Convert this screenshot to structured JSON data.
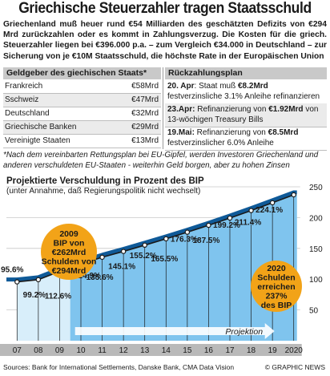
{
  "title": "Griechische Steuerzahler tragen Staatsschuld",
  "intro": "Griechenland muß heuer rund €54 Milliarden des geschätzten Defizits von €294 Mrd zurückzahlen oder es kommt in Zahlungsverzug. Die Kosten für die griech. Steuerzahler liegen bei €396.000 p.a. – zum Vergleich €34.000 in Deutschland – zur Sicherung von je €10M Staatsschuld, die höchste Rate in der Europäischen Union",
  "creditors": {
    "header": "Geldgeber des giechischen Staats*",
    "rows": [
      {
        "name": "Frankreich",
        "amount": "€58Mrd"
      },
      {
        "name": "Sschweiz",
        "amount": "€47Mrd"
      },
      {
        "name": "Deutschland",
        "amount": "€32Mrd"
      },
      {
        "name": "Griechische Banken",
        "amount": "€29Mrd"
      },
      {
        "name": "Vereinigte Staaten",
        "amount": "€13Mrd"
      }
    ]
  },
  "repayment": {
    "header": "Rückzahlungsplan",
    "rows": [
      {
        "date": "20. Apr",
        "text1": ": Staat muß ",
        "amount": "€8.2Mrd",
        "text2": " festverzinsliche 3.1% Anleihe refinanzieren"
      },
      {
        "date": "23.Apr:",
        "text1": " Refinanzierung von ",
        "amount": "€1.92Mrd",
        "text2": " von 13-wöchigen Treasury Bills"
      },
      {
        "date": "19.Mai:",
        "text1": " Refinanzierung von ",
        "amount": "€8.5Mrd",
        "text2": " festverzinslicher 6.0% Anleihe"
      }
    ]
  },
  "footnote": "*Nach dem vereinbarten Rettungsplan bei EU-Gipfel, werden Investoren Griechenland und anderen verschuldeten EU-Staaten - weiterhin Geld borgen, aber zu hohen Zinsen",
  "chart_data": {
    "type": "line",
    "title": "Projektierte Verschuldung in Prozent des BIP",
    "subtitle": "(unter Annahme, daß Regierungspolitik nicht wechselt)",
    "categories": [
      "07",
      "08",
      "09",
      "10",
      "11",
      "12",
      "13",
      "14",
      "15",
      "16",
      "17",
      "18",
      "19",
      "2020"
    ],
    "values": [
      95.6,
      99.2,
      112.6,
      124.9,
      135.6,
      145.1,
      155.2,
      165.5,
      176.3,
      187.5,
      199.2,
      211.4,
      224.1,
      237
    ],
    "data_labels": [
      "95.6%",
      "99.2%",
      "112.6%",
      "124.9%",
      "135.6%",
      "145.1%",
      "155.2%",
      "165.5%",
      "176.3%",
      "187.5%",
      "199.2%",
      "211.4%",
      "224.1%",
      ""
    ],
    "ylim": [
      0,
      250
    ],
    "yticks": [
      0,
      50,
      100,
      150,
      200,
      250
    ],
    "projection_label": "Projektion",
    "projection_start": "10",
    "callout_2009": [
      "2009",
      "BIP von",
      "€262Mrd",
      "Schulden von",
      "€294Mrd"
    ],
    "callout_2020": [
      "2020",
      "Schulden",
      "erreichen",
      "237%",
      "des BIP"
    ],
    "colors": {
      "line": "#1a1a1a",
      "fill_light": "#d8eefa",
      "fill_proj": "#7fc4ee",
      "axis_band": "#b9b9b9",
      "callout": "#f2a318",
      "band_top": "#0f5a98"
    }
  },
  "source": "Sources: Bank for International Settlements, Danske Bank, CMA Data Vision",
  "credit": "© GRAPHIC NEWS"
}
